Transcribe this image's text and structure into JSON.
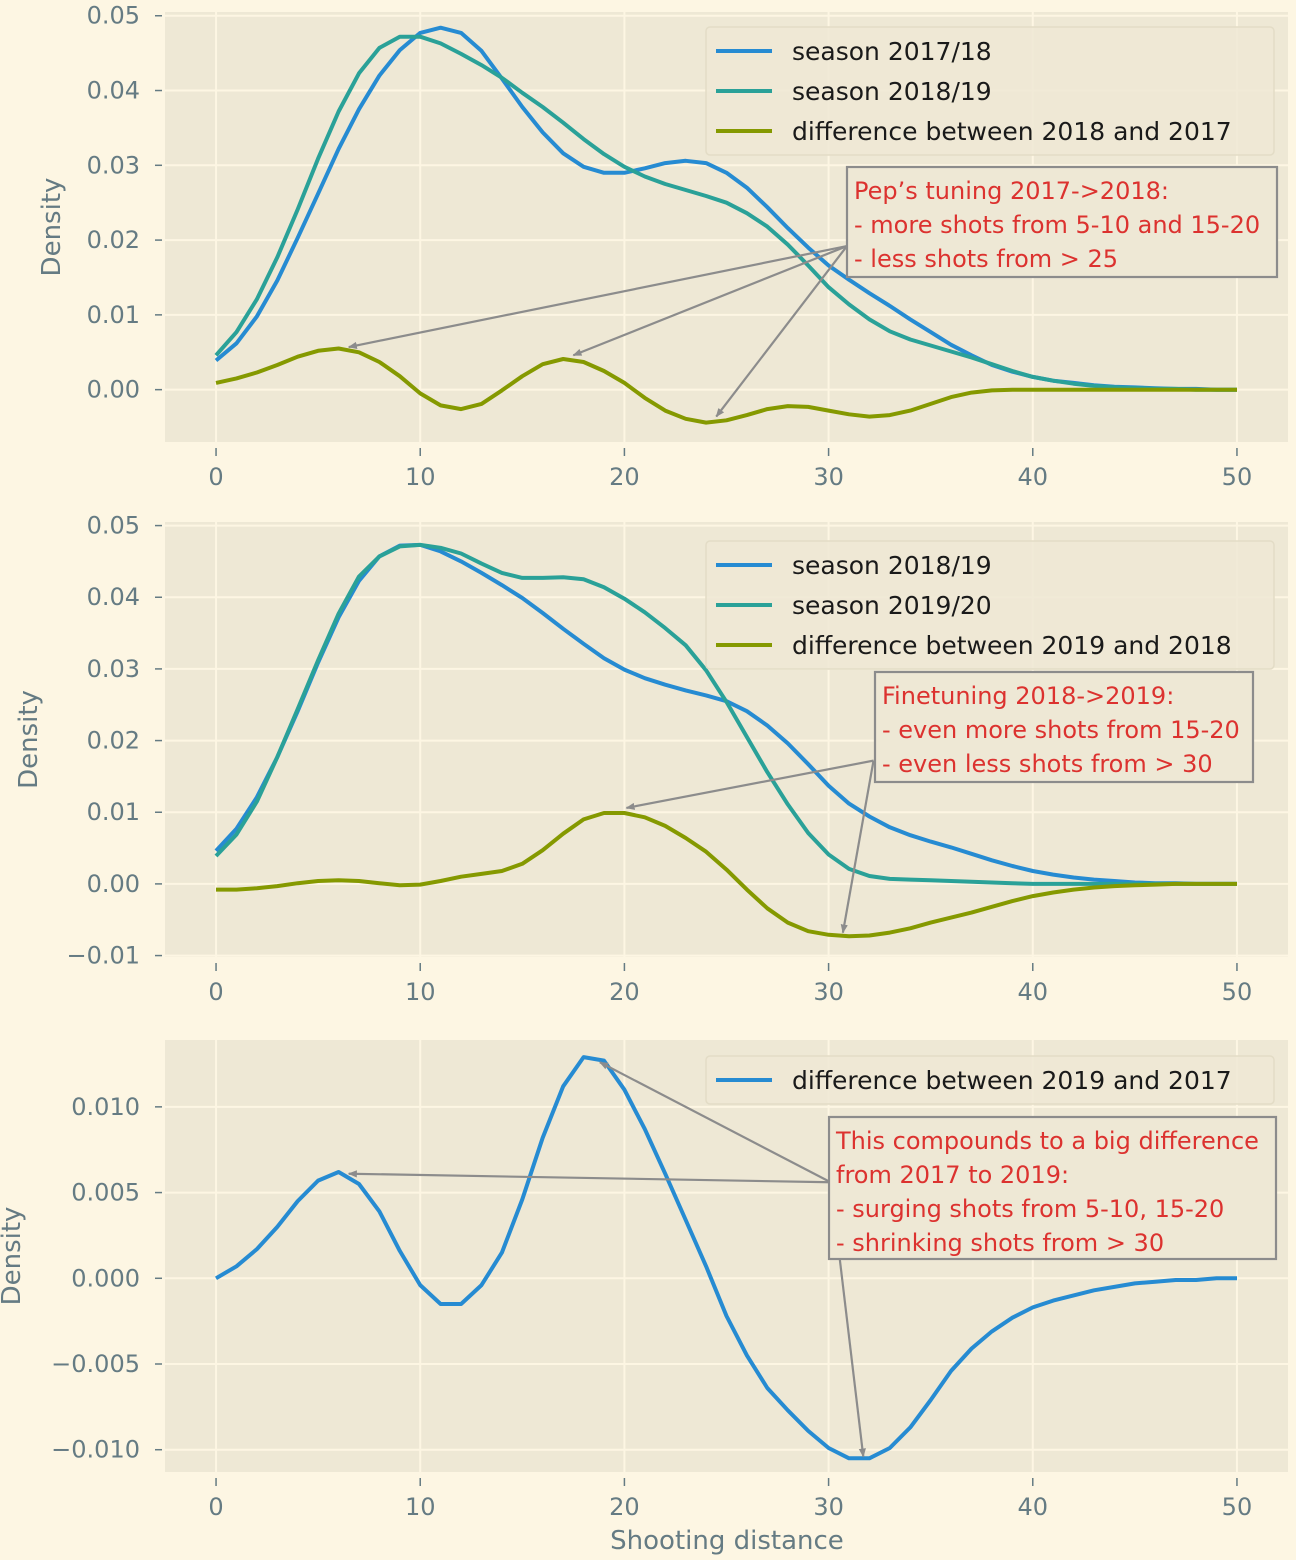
{
  "colors": {
    "page_bg": "#fdf6e3",
    "plot_bg": "#eee8d5",
    "grid": "#fdf6e3",
    "tick_text": "#657b83",
    "blue": "#268bd2",
    "teal": "#2aa198",
    "olive": "#859900",
    "annotation_text": "#dc322f",
    "annotation_border": "#8c8c8c",
    "arrow": "#8c8c8c"
  },
  "figure": {
    "xlabel": "Shooting distance"
  },
  "chart_data": [
    {
      "type": "line",
      "ylabel": "Density",
      "xlim": [
        -2.5,
        52.5
      ],
      "ylim": [
        -0.007,
        0.0505
      ],
      "xticks": [
        0,
        10,
        20,
        30,
        40,
        50
      ],
      "xtick_labels": [
        "0",
        "10",
        "20",
        "30",
        "40",
        "50"
      ],
      "yticks": [
        0.0,
        0.01,
        0.02,
        0.03,
        0.04,
        0.05
      ],
      "ytick_labels": [
        "0.00",
        "0.01",
        "0.02",
        "0.03",
        "0.04",
        "0.05"
      ],
      "legend": "top-right",
      "grid": true,
      "series": [
        {
          "name": "season 2017/18",
          "color": "blue",
          "x": [
            0,
            1,
            2,
            3,
            4,
            5,
            6,
            7,
            8,
            9,
            10,
            11,
            12,
            13,
            14,
            15,
            16,
            17,
            18,
            19,
            20,
            21,
            22,
            23,
            24,
            25,
            26,
            27,
            28,
            29,
            30,
            31,
            32,
            33,
            34,
            35,
            36,
            37,
            38,
            39,
            40,
            41,
            42,
            43,
            44,
            45,
            46,
            47,
            48,
            49,
            50
          ],
          "y": [
            0.0039,
            0.0062,
            0.0098,
            0.0146,
            0.0203,
            0.0262,
            0.0322,
            0.0375,
            0.042,
            0.0454,
            0.0477,
            0.0484,
            0.0477,
            0.0453,
            0.0416,
            0.0378,
            0.0344,
            0.0316,
            0.0298,
            0.029,
            0.029,
            0.0296,
            0.0303,
            0.0306,
            0.0303,
            0.029,
            0.027,
            0.0244,
            0.0216,
            0.019,
            0.0166,
            0.0147,
            0.0129,
            0.0112,
            0.0094,
            0.0077,
            0.006,
            0.0046,
            0.0033,
            0.0024,
            0.0017,
            0.0012,
            0.0009,
            0.0006,
            0.0004,
            0.0003,
            0.0002,
            0.0001,
            0.0001,
            0.0,
            0.0
          ]
        },
        {
          "name": "season 2018/19",
          "color": "teal",
          "x": [
            0,
            1,
            2,
            3,
            4,
            5,
            6,
            7,
            8,
            9,
            10,
            11,
            12,
            13,
            14,
            15,
            16,
            17,
            18,
            19,
            20,
            21,
            22,
            23,
            24,
            25,
            26,
            27,
            28,
            29,
            30,
            31,
            32,
            33,
            34,
            35,
            36,
            37,
            38,
            39,
            40,
            41,
            42,
            43,
            44,
            45,
            46,
            47,
            48,
            49,
            50
          ],
          "y": [
            0.0046,
            0.0077,
            0.0121,
            0.0177,
            0.0241,
            0.0309,
            0.0372,
            0.0423,
            0.0457,
            0.0472,
            0.0472,
            0.0463,
            0.0449,
            0.0434,
            0.0417,
            0.0397,
            0.0378,
            0.0357,
            0.0335,
            0.0315,
            0.0298,
            0.0285,
            0.0275,
            0.0267,
            0.0259,
            0.025,
            0.0236,
            0.0218,
            0.0194,
            0.0166,
            0.0137,
            0.0114,
            0.0094,
            0.0078,
            0.0067,
            0.0059,
            0.0051,
            0.0043,
            0.0034,
            0.0025,
            0.0017,
            0.0012,
            0.0008,
            0.0005,
            0.0003,
            0.0002,
            0.0001,
            0.0001,
            0.0,
            0.0,
            0.0
          ]
        },
        {
          "name": "difference between 2018 and 2017",
          "color": "olive",
          "x": [
            0,
            1,
            2,
            3,
            4,
            5,
            6,
            7,
            8,
            9,
            10,
            11,
            12,
            13,
            14,
            15,
            16,
            17,
            18,
            19,
            20,
            21,
            22,
            23,
            24,
            25,
            26,
            27,
            28,
            29,
            30,
            31,
            32,
            33,
            34,
            35,
            36,
            37,
            38,
            39,
            40,
            41,
            42,
            43,
            44,
            45,
            46,
            47,
            48,
            49,
            50
          ],
          "y": [
            0.0009,
            0.0015,
            0.0023,
            0.0033,
            0.0044,
            0.0052,
            0.0055,
            0.005,
            0.0037,
            0.0018,
            -0.0005,
            -0.0021,
            -0.0026,
            -0.0019,
            -0.0001,
            0.0018,
            0.0034,
            0.0041,
            0.0037,
            0.0025,
            0.0009,
            -0.0011,
            -0.0028,
            -0.0039,
            -0.0044,
            -0.0041,
            -0.0034,
            -0.0026,
            -0.0022,
            -0.0023,
            -0.0028,
            -0.0033,
            -0.0036,
            -0.0034,
            -0.0028,
            -0.0019,
            -0.001,
            -0.0004,
            -0.0001,
            0.0,
            0.0,
            0.0,
            0.0,
            0.0,
            0.0,
            0.0,
            0.0,
            0.0,
            0.0,
            0.0,
            0.0
          ]
        }
      ],
      "annotation": {
        "lines": [
          "Pep’s tuning 2017->2018:",
          "- more shots from 5-10 and 15-20",
          "- less shots from > 25"
        ],
        "arrow_targets": [
          [
            6.5,
            0.0057
          ],
          [
            17.5,
            0.0046
          ],
          [
            24.5,
            -0.0036
          ]
        ],
        "arrow_source": [
          30.9,
          0.0192
        ]
      }
    },
    {
      "type": "line",
      "ylabel": "Density",
      "xlim": [
        -2.5,
        52.5
      ],
      "ylim": [
        -0.0102,
        0.0505
      ],
      "xticks": [
        0,
        10,
        20,
        30,
        40,
        50
      ],
      "xtick_labels": [
        "0",
        "10",
        "20",
        "30",
        "40",
        "50"
      ],
      "yticks": [
        -0.01,
        0.0,
        0.01,
        0.02,
        0.03,
        0.04,
        0.05
      ],
      "ytick_labels": [
        "−0.01",
        "0.00",
        "0.01",
        "0.02",
        "0.03",
        "0.04",
        "0.05"
      ],
      "legend": "top-right",
      "grid": true,
      "series": [
        {
          "name": "season 2018/19",
          "color": "blue",
          "x": [
            0,
            1,
            2,
            3,
            4,
            5,
            6,
            7,
            8,
            9,
            10,
            11,
            12,
            13,
            14,
            15,
            16,
            17,
            18,
            19,
            20,
            21,
            22,
            23,
            24,
            25,
            26,
            27,
            28,
            29,
            30,
            31,
            32,
            33,
            34,
            35,
            36,
            37,
            38,
            39,
            40,
            41,
            42,
            43,
            44,
            45,
            46,
            47,
            48,
            49,
            50
          ],
          "y": [
            0.0046,
            0.0077,
            0.0121,
            0.0177,
            0.0241,
            0.0309,
            0.0372,
            0.0423,
            0.0457,
            0.0472,
            0.0473,
            0.0464,
            0.045,
            0.0434,
            0.0417,
            0.0399,
            0.0378,
            0.0356,
            0.0335,
            0.0315,
            0.0299,
            0.0287,
            0.0278,
            0.027,
            0.0263,
            0.0255,
            0.0241,
            0.0221,
            0.0196,
            0.0167,
            0.0137,
            0.0112,
            0.0094,
            0.0079,
            0.0068,
            0.0059,
            0.0051,
            0.0042,
            0.0033,
            0.0025,
            0.0018,
            0.0013,
            0.0009,
            0.0006,
            0.0004,
            0.0002,
            0.0001,
            0.0001,
            0.0,
            0.0,
            0.0
          ]
        },
        {
          "name": "season 2019/20",
          "color": "teal",
          "x": [
            0,
            1,
            2,
            3,
            4,
            5,
            6,
            7,
            8,
            9,
            10,
            11,
            12,
            13,
            14,
            15,
            16,
            17,
            18,
            19,
            20,
            21,
            22,
            23,
            24,
            25,
            26,
            27,
            28,
            29,
            30,
            31,
            32,
            33,
            34,
            35,
            36,
            37,
            38,
            39,
            40,
            41,
            42,
            43,
            44,
            45,
            46,
            47,
            48,
            49,
            50
          ],
          "y": [
            0.0039,
            0.0069,
            0.0115,
            0.0177,
            0.0244,
            0.0312,
            0.0377,
            0.0429,
            0.0457,
            0.0471,
            0.0473,
            0.0469,
            0.0461,
            0.0447,
            0.0434,
            0.0427,
            0.0427,
            0.0428,
            0.0425,
            0.0414,
            0.0398,
            0.0379,
            0.0357,
            0.0333,
            0.0298,
            0.0254,
            0.0205,
            0.0156,
            0.0111,
            0.0071,
            0.0041,
            0.0021,
            0.0011,
            0.0007,
            0.0006,
            0.0005,
            0.0004,
            0.0003,
            0.0002,
            0.0001,
            0.0,
            0.0,
            0.0,
            0.0,
            0.0,
            0.0,
            0.0,
            0.0,
            0.0,
            0.0,
            0.0
          ]
        },
        {
          "name": "difference between 2019 and 2018",
          "color": "olive",
          "x": [
            0,
            1,
            2,
            3,
            4,
            5,
            6,
            7,
            8,
            9,
            10,
            11,
            12,
            13,
            14,
            15,
            16,
            17,
            18,
            19,
            20,
            21,
            22,
            23,
            24,
            25,
            26,
            27,
            28,
            29,
            30,
            31,
            32,
            33,
            34,
            35,
            36,
            37,
            38,
            39,
            40,
            41,
            42,
            43,
            44,
            45,
            46,
            47,
            48,
            49,
            50
          ],
          "y": [
            -0.0008,
            -0.0008,
            -0.0006,
            -0.0003,
            0.0001,
            0.0004,
            0.0005,
            0.0004,
            0.0001,
            -0.0002,
            -0.0001,
            0.0004,
            0.001,
            0.0014,
            0.0018,
            0.0028,
            0.0047,
            0.007,
            0.009,
            0.0099,
            0.0099,
            0.0093,
            0.0081,
            0.0064,
            0.0045,
            0.002,
            -0.0008,
            -0.0034,
            -0.0054,
            -0.0066,
            -0.0071,
            -0.0073,
            -0.0072,
            -0.0068,
            -0.0062,
            -0.0054,
            -0.0047,
            -0.004,
            -0.0032,
            -0.0024,
            -0.0017,
            -0.0012,
            -0.0008,
            -0.0005,
            -0.0003,
            -0.0002,
            -0.0001,
            0.0,
            0.0,
            0.0,
            0.0
          ]
        }
      ],
      "annotation": {
        "lines": [
          "Finetuning 2018->2019:",
          "- even more shots from 15-20",
          "- even less shots from > 30"
        ],
        "arrow_targets": [
          [
            20.1,
            0.0106
          ],
          [
            30.7,
            -0.0068
          ]
        ],
        "arrow_source": [
          32.2,
          0.0172
        ]
      }
    },
    {
      "type": "line",
      "ylabel": "Density",
      "xlim": [
        -2.5,
        52.5
      ],
      "ylim": [
        -0.0113,
        0.0139
      ],
      "xticks": [
        0,
        10,
        20,
        30,
        40,
        50
      ],
      "xtick_labels": [
        "0",
        "10",
        "20",
        "30",
        "40",
        "50"
      ],
      "yticks": [
        -0.01,
        -0.005,
        0.0,
        0.005,
        0.01
      ],
      "ytick_labels": [
        "−0.010",
        "−0.005",
        "0.000",
        "0.005",
        "0.010"
      ],
      "legend": "top-right",
      "grid": true,
      "series": [
        {
          "name": "difference between 2019 and 2017",
          "color": "blue",
          "x": [
            0,
            1,
            2,
            3,
            4,
            5,
            6,
            7,
            8,
            9,
            10,
            11,
            12,
            13,
            14,
            15,
            16,
            17,
            18,
            19,
            20,
            21,
            22,
            23,
            24,
            25,
            26,
            27,
            28,
            29,
            30,
            31,
            32,
            33,
            34,
            35,
            36,
            37,
            38,
            39,
            40,
            41,
            42,
            43,
            44,
            45,
            46,
            47,
            48,
            49,
            50
          ],
          "y": [
            0.0,
            0.0007,
            0.0017,
            0.003,
            0.0045,
            0.0057,
            0.0062,
            0.0055,
            0.0039,
            0.0016,
            -0.0004,
            -0.0015,
            -0.0015,
            -0.0004,
            0.0015,
            0.0046,
            0.0082,
            0.0112,
            0.0129,
            0.0127,
            0.011,
            0.0087,
            0.0061,
            0.0034,
            0.0007,
            -0.0022,
            -0.0045,
            -0.0064,
            -0.0077,
            -0.0089,
            -0.0099,
            -0.0105,
            -0.0105,
            -0.0099,
            -0.0087,
            -0.0071,
            -0.0054,
            -0.0041,
            -0.0031,
            -0.0023,
            -0.0017,
            -0.0013,
            -0.001,
            -0.0007,
            -0.0005,
            -0.0003,
            -0.0002,
            -0.0001,
            -0.0001,
            0.0,
            0.0
          ]
        }
      ],
      "annotation": {
        "lines": [
          "This compounds to a big difference",
          "from 2017 to 2019:",
          "- surging shots from 5-10, 15-20",
          "- shrinking shots from > 30"
        ],
        "arrow_targets": [
          [
            6.5,
            0.0061
          ],
          [
            18.8,
            0.0126
          ],
          [
            31.7,
            -0.0104
          ]
        ],
        "arrow_source": [
          30.1,
          0.0056
        ]
      }
    }
  ]
}
